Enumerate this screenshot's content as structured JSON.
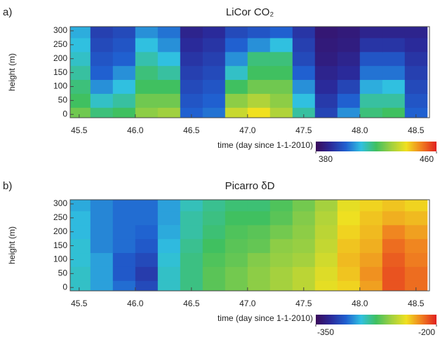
{
  "chart_data": [
    {
      "type": "heatmap",
      "panel_label": "a)",
      "title": "LiCor CO₂",
      "xlabel": "time (day since 1-1-2010)",
      "ylabel": "height (m)",
      "xlim": [
        45.42,
        48.62
      ],
      "ylim": [
        -12,
        315
      ],
      "xticks": [
        45.5,
        {
          "value": 46,
          "label": "46.0"
        },
        46.5,
        {
          "value": 47,
          "label": "47.0"
        },
        47.5,
        {
          "value": 48,
          "label": "48.0"
        },
        48.5
      ],
      "yticks": [
        0,
        50,
        100,
        150,
        200,
        250,
        300
      ],
      "x": [
        45.5,
        45.7,
        45.9,
        46.1,
        46.3,
        46.5,
        46.7,
        46.9,
        47.1,
        47.3,
        47.5,
        47.7,
        47.9,
        48.1,
        48.3,
        48.5
      ],
      "y": [
        0,
        50,
        100,
        150,
        200,
        250,
        300
      ],
      "z": [
        [
          425,
          418,
          420,
          428,
          430,
          400,
          402,
          435,
          440,
          432,
          415,
          395,
          405,
          418,
          420,
          400
        ],
        [
          420,
          412,
          415,
          425,
          425,
          398,
          400,
          428,
          432,
          428,
          410,
          393,
          400,
          415,
          415,
          398
        ],
        [
          418,
          405,
          410,
          420,
          420,
          396,
          398,
          420,
          425,
          425,
          405,
          390,
          395,
          408,
          410,
          396
        ],
        [
          415,
          400,
          405,
          418,
          415,
          394,
          396,
          412,
          420,
          420,
          400,
          388,
          390,
          402,
          402,
          394
        ],
        [
          412,
          398,
          400,
          414,
          410,
          392,
          394,
          405,
          418,
          418,
          396,
          386,
          388,
          398,
          398,
          392
        ],
        [
          410,
          396,
          398,
          410,
          405,
          390,
          392,
          400,
          405,
          410,
          394,
          385,
          386,
          392,
          392,
          390
        ],
        [
          408,
          394,
          396,
          405,
          402,
          388,
          390,
          396,
          398,
          400,
          392,
          384,
          385,
          388,
          388,
          388
        ]
      ],
      "clim": [
        380,
        460
      ],
      "cticks": [
        380,
        460
      ],
      "colormap": [
        "#3a0a5a",
        "#2a2a9a",
        "#2060d0",
        "#30c0e0",
        "#40c060",
        "#a0d040",
        "#f0e020",
        "#f08020",
        "#e02020"
      ]
    },
    {
      "type": "heatmap",
      "panel_label": "b)",
      "title": "Picarro δD",
      "xlabel": "time (day since 1-1-2010)",
      "ylabel": "height (m)",
      "xlim": [
        45.42,
        48.62
      ],
      "ylim": [
        -12,
        315
      ],
      "xticks": [
        45.5,
        {
          "value": 46,
          "label": "46.0"
        },
        46.5,
        {
          "value": 47,
          "label": "47.0"
        },
        47.5,
        {
          "value": 48,
          "label": "48.0"
        },
        48.5
      ],
      "yticks": [
        0,
        50,
        100,
        150,
        200,
        250,
        300
      ],
      "x": [
        45.5,
        45.7,
        45.9,
        46.1,
        46.3,
        46.5,
        46.7,
        46.9,
        47.1,
        47.3,
        47.5,
        47.7,
        47.9,
        48.1,
        48.3,
        48.5
      ],
      "y": [
        0,
        50,
        100,
        150,
        200,
        250,
        300
      ],
      "z": [
        [
          -290,
          -300,
          -310,
          -320,
          -290,
          -280,
          -270,
          -265,
          -260,
          -255,
          -250,
          -240,
          -235,
          -225,
          -210,
          -215
        ],
        [
          -290,
          -300,
          -315,
          -325,
          -290,
          -280,
          -270,
          -265,
          -260,
          -255,
          -250,
          -242,
          -232,
          -222,
          -210,
          -215
        ],
        [
          -292,
          -300,
          -315,
          -320,
          -292,
          -280,
          -272,
          -268,
          -262,
          -258,
          -255,
          -245,
          -230,
          -225,
          -212,
          -218
        ],
        [
          -292,
          -305,
          -310,
          -315,
          -295,
          -282,
          -275,
          -270,
          -268,
          -260,
          -258,
          -248,
          -232,
          -228,
          -215,
          -220
        ],
        [
          -295,
          -305,
          -310,
          -312,
          -298,
          -285,
          -278,
          -272,
          -270,
          -265,
          -260,
          -250,
          -235,
          -230,
          -220,
          -225
        ],
        [
          -295,
          -305,
          -310,
          -310,
          -300,
          -285,
          -280,
          -275,
          -275,
          -270,
          -262,
          -252,
          -238,
          -232,
          -228,
          -230
        ],
        [
          -298,
          -305,
          -310,
          -310,
          -300,
          -288,
          -282,
          -278,
          -278,
          -272,
          -265,
          -255,
          -240,
          -235,
          -232,
          -235
        ]
      ],
      "clim": [
        -350,
        -200
      ],
      "cticks": [
        -350,
        -200
      ],
      "colormap": [
        "#3a0a5a",
        "#2a2a9a",
        "#2060d0",
        "#30c0e0",
        "#40c060",
        "#a0d040",
        "#f0e020",
        "#f08020",
        "#e02020"
      ]
    }
  ]
}
